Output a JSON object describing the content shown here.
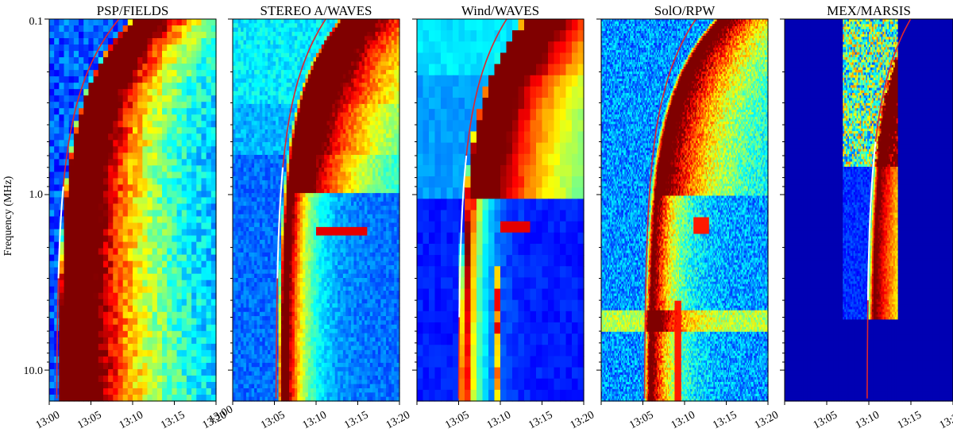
{
  "figure": {
    "ylabel": "Frequency (MHz)",
    "y_ticks": [
      "0.1",
      "1.0",
      "10.0"
    ],
    "y_scale": "log (inverted: 0.1 MHz at top, ~15 MHz at bottom)",
    "x_tick_labels": [
      "13:00",
      "13:05",
      "13:10",
      "13:15",
      "13:20"
    ],
    "extra_corner_label": "13:00",
    "colormap": "jet",
    "colors": {
      "background_min": "#00008b",
      "max": "#800000",
      "fit_curve_upper": "#e0262c",
      "fit_curve_lower": "#ffffff"
    }
  },
  "chart_data": [
    {
      "type": "heatmap",
      "title": "PSP/FIELDS",
      "x_range": [
        "13:00",
        "13:20"
      ],
      "y_range_mhz": [
        0.1,
        15
      ],
      "burst_onset_minute_at_15mhz": 1,
      "burst_arrival_minute_at_0.1mhz": 20,
      "intensity": "saturated (dark red) core from ~0.3 to ~12 MHz",
      "fit_curve": "red above ~0.9 MHz, white from ~0.9 to ~3 MHz"
    },
    {
      "type": "heatmap",
      "title": "STEREO A/WAVES",
      "x_range": [
        "13:00",
        "13:20"
      ],
      "y_range_mhz": [
        0.1,
        15
      ],
      "burst_onset_minute_at_15mhz": 5.5,
      "features": [
        "horizontal blocks of light blue above 0.3 MHz",
        "interference line at ~1.6 MHz"
      ],
      "fit_curve": "red above ~0.7 MHz, white from ~0.7 to ~3 MHz"
    },
    {
      "type": "heatmap",
      "title": "Wind/WAVES",
      "x_range": [
        "13:00",
        "13:20"
      ],
      "y_range_mhz": [
        0.1,
        15
      ],
      "burst_onset_minute_at_15mhz": 5,
      "features": [
        "coarse frequency channels",
        "step in background at ~1 MHz"
      ],
      "fit_curve": "red above ~0.6 MHz, white from ~0.6 to ~5 MHz"
    },
    {
      "type": "heatmap",
      "title": "SolO/RPW",
      "x_range": [
        "13:00",
        "13:20"
      ],
      "y_range_mhz": [
        0.1,
        15
      ],
      "burst_onset_minute_at_15mhz": 5.3,
      "features": [
        "interference band at ~4-5 MHz",
        "striated horizontal lines"
      ],
      "fit_curve": "red throughout"
    },
    {
      "type": "heatmap",
      "title": "MEX/MARSIS",
      "x_range": [
        "13:00",
        "13:20"
      ],
      "y_range_mhz": [
        0.1,
        15
      ],
      "data_coverage_minutes": [
        7,
        13.5
      ],
      "burst_onset_minute_at_15mhz": 10,
      "fit_curve": "red above ~0.5 MHz and below ~4 MHz, white from ~0.5 to ~4 MHz"
    }
  ]
}
